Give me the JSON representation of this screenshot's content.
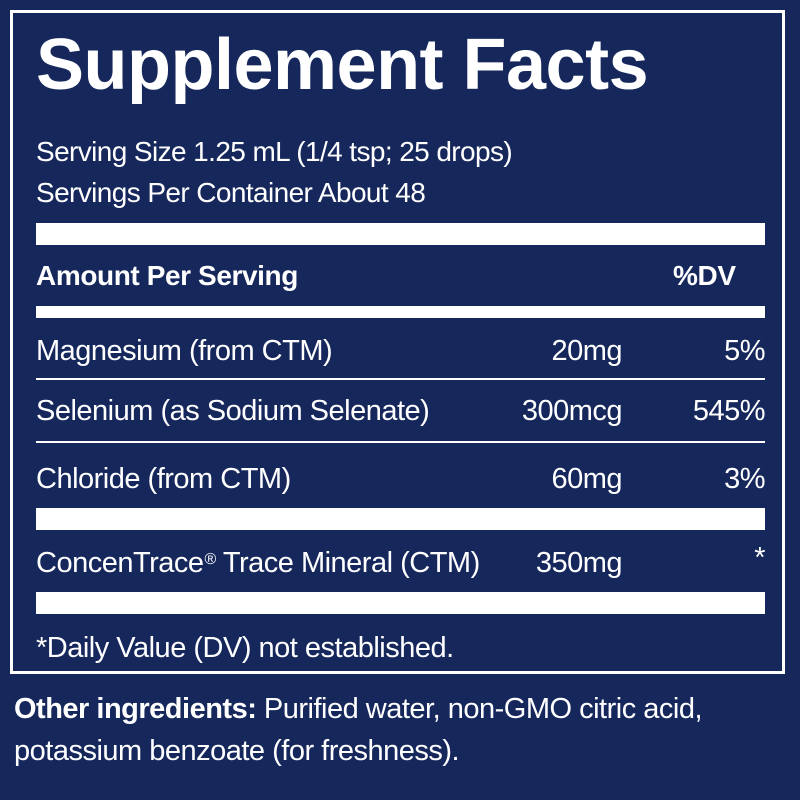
{
  "title": "Supplement Facts",
  "serving_size": "Serving Size 1.25 mL (1/4 tsp; 25 drops)",
  "servings_per_container": "Servings Per Container About 48",
  "header": {
    "amount_label": "Amount Per Serving",
    "dv_label": "%DV"
  },
  "rows": [
    {
      "name": "Magnesium (from CTM)",
      "amount": "20mg",
      "dv": "5%"
    },
    {
      "name": "Selenium (as Sodium Selenate)",
      "amount": "300mcg",
      "dv": "545%"
    },
    {
      "name": "Chloride (from CTM)",
      "amount": "60mg",
      "dv": "3%"
    },
    {
      "name": "ConcenTrace",
      "name_suffix": " Trace Mineral (CTM)",
      "registered": "®",
      "amount": "350mg",
      "dv": "*"
    }
  ],
  "footnote": "*Daily Value (DV) not established.",
  "other_ingredients": {
    "label": "Other ingredients:",
    "text": " Purified water, non-GMO citric acid, potassium benzoate (for freshness)."
  },
  "colors": {
    "background": "#16275c",
    "text": "#ffffff"
  }
}
